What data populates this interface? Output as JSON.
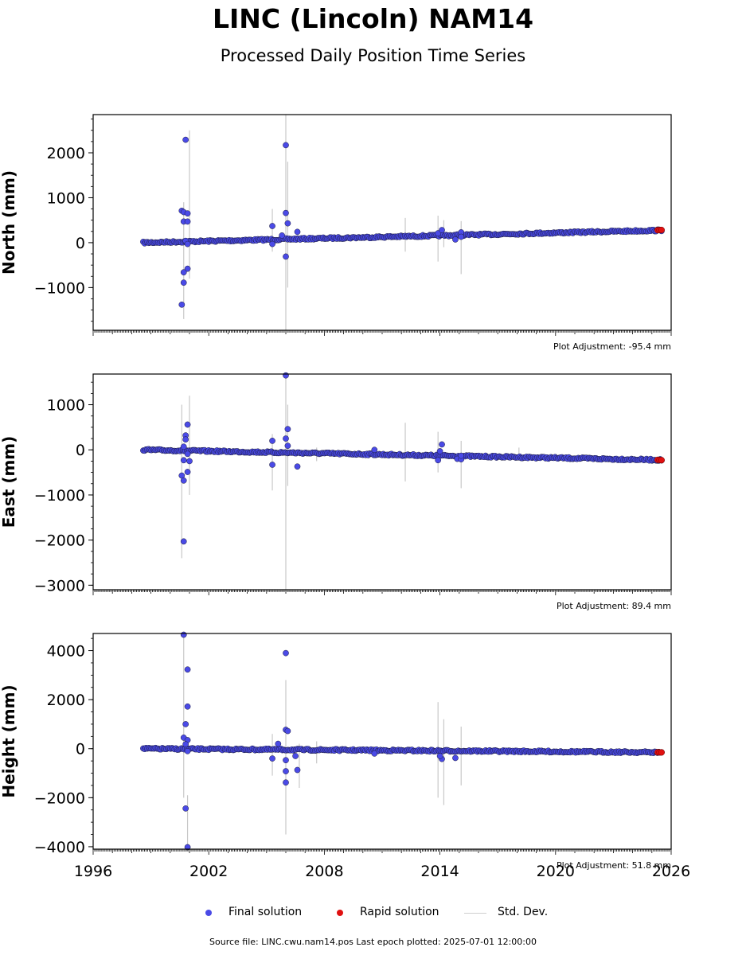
{
  "title": "LINC (Lincoln) NAM14",
  "subtitle": "Processed Daily Position Time Series",
  "legend": {
    "final": "Final solution",
    "rapid": "Rapid solution",
    "std": "Std. Dev."
  },
  "footer": "Source file: LINC.cwu.nam14.pos  Last epoch plotted: 2025-07-01 12:00:00",
  "colors": {
    "final": "#4a4ae6",
    "rapid": "#e01010",
    "std": "#c8c8c8",
    "edge": "#1a1a3a"
  },
  "chart_data": [
    {
      "type": "scatter",
      "ylabel": "North (mm)",
      "xlim": [
        1996,
        2026
      ],
      "ylim": [
        -1950,
        2850
      ],
      "yticks": [
        -1000,
        0,
        1000,
        2000
      ],
      "ytick_labels": [
        "−1000",
        "0",
        "1000",
        "2000"
      ],
      "adjustment": "Plot Adjustment: -95.4 mm",
      "trend": {
        "start": [
          1998.6,
          0
        ],
        "end": [
          2025.5,
          275
        ]
      },
      "rapid": [
        [
          2025.3,
          278
        ],
        [
          2025.4,
          280
        ],
        [
          2025.5,
          282
        ]
      ],
      "outliers": [
        [
          2000.8,
          2290
        ],
        [
          2000.6,
          710
        ],
        [
          2000.7,
          680
        ],
        [
          2000.9,
          650
        ],
        [
          2000.7,
          470
        ],
        [
          2000.9,
          470
        ],
        [
          2000.8,
          40
        ],
        [
          2000.9,
          -30
        ],
        [
          2000.9,
          -580
        ],
        [
          2000.7,
          -660
        ],
        [
          2000.7,
          -890
        ],
        [
          2000.6,
          -1380
        ],
        [
          2005.3,
          370
        ],
        [
          2005.3,
          -30
        ],
        [
          2005.8,
          160
        ],
        [
          2006.0,
          2170
        ],
        [
          2006.0,
          660
        ],
        [
          2006.1,
          430
        ],
        [
          2006.6,
          240
        ],
        [
          2006.0,
          -310
        ],
        [
          2013.9,
          210
        ],
        [
          2014.1,
          280
        ],
        [
          2014.8,
          70
        ],
        [
          2015.1,
          230
        ],
        [
          2015.1,
          130
        ]
      ],
      "stddev": [
        [
          2000.7,
          -1700,
          900
        ],
        [
          2001.0,
          -800,
          2500
        ],
        [
          2006.0,
          -1950,
          2850
        ],
        [
          2006.1,
          -1000,
          1800
        ],
        [
          2005.3,
          -200,
          750
        ],
        [
          2012.2,
          -200,
          550
        ],
        [
          2013.9,
          -420,
          600
        ],
        [
          2015.1,
          -700,
          480
        ],
        [
          2014.2,
          -100,
          500
        ]
      ]
    },
    {
      "type": "scatter",
      "ylabel": "East (mm)",
      "xlim": [
        1996,
        2026
      ],
      "ylim": [
        -3100,
        1680
      ],
      "yticks": [
        -3000,
        -2000,
        -1000,
        0,
        1000
      ],
      "ytick_labels": [
        "−3000",
        "−2000",
        "−1000",
        "0",
        "1000"
      ],
      "adjustment": "Plot Adjustment: 89.4 mm",
      "trend": {
        "start": [
          1998.6,
          0
        ],
        "end": [
          2025.5,
          -225
        ]
      },
      "rapid": [
        [
          2025.3,
          -222
        ],
        [
          2025.4,
          -225
        ],
        [
          2025.5,
          -228
        ]
      ],
      "outliers": [
        [
          2000.9,
          560
        ],
        [
          2000.8,
          320
        ],
        [
          2000.8,
          230
        ],
        [
          2000.7,
          70
        ],
        [
          2000.9,
          -90
        ],
        [
          2000.7,
          -230
        ],
        [
          2001.0,
          -250
        ],
        [
          2000.9,
          -490
        ],
        [
          2000.6,
          -570
        ],
        [
          2000.7,
          -680
        ],
        [
          2000.7,
          -2030
        ],
        [
          2005.3,
          200
        ],
        [
          2005.3,
          -330
        ],
        [
          2006.0,
          1650
        ],
        [
          2006.1,
          460
        ],
        [
          2006.0,
          250
        ],
        [
          2006.1,
          90
        ],
        [
          2006.6,
          -370
        ],
        [
          2010.6,
          0
        ],
        [
          2013.9,
          -230
        ],
        [
          2014.1,
          120
        ],
        [
          2014.0,
          -30
        ],
        [
          2014.9,
          -200
        ],
        [
          2015.1,
          -210
        ],
        [
          2015.1,
          -130
        ]
      ],
      "stddev": [
        [
          2000.6,
          -2400,
          1000
        ],
        [
          2001.0,
          -1000,
          1200
        ],
        [
          2006.0,
          -3100,
          1680
        ],
        [
          2006.1,
          -800,
          1000
        ],
        [
          2005.3,
          -900,
          350
        ],
        [
          2007.6,
          -250,
          50
        ],
        [
          2012.2,
          -700,
          600
        ],
        [
          2013.9,
          -500,
          400
        ],
        [
          2015.1,
          -850,
          200
        ],
        [
          2018.1,
          -200,
          50
        ]
      ]
    },
    {
      "type": "scatter",
      "ylabel": "Height (mm)",
      "xlim": [
        1996,
        2026
      ],
      "ylim": [
        -4100,
        4700
      ],
      "yticks": [
        -4000,
        -2000,
        0,
        2000,
        4000
      ],
      "ytick_labels": [
        "−4000",
        "−2000",
        "0",
        "2000",
        "4000"
      ],
      "adjustment": "Plot Adjustment: 51.8 mm",
      "trend": {
        "start": [
          1998.6,
          0
        ],
        "end": [
          2025.5,
          -150
        ]
      },
      "rapid": [
        [
          2025.3,
          -148
        ],
        [
          2025.4,
          -150
        ],
        [
          2025.5,
          -152
        ]
      ],
      "outliers": [
        [
          2000.7,
          4650
        ],
        [
          2000.9,
          3230
        ],
        [
          2000.9,
          1720
        ],
        [
          2000.8,
          1000
        ],
        [
          2000.7,
          450
        ],
        [
          2000.9,
          350
        ],
        [
          2000.8,
          180
        ],
        [
          2000.9,
          -100
        ],
        [
          2000.8,
          -2440
        ],
        [
          2000.9,
          -4020
        ],
        [
          2005.3,
          -400
        ],
        [
          2005.6,
          200
        ],
        [
          2006.0,
          3900
        ],
        [
          2006.0,
          770
        ],
        [
          2006.1,
          720
        ],
        [
          2006.0,
          -470
        ],
        [
          2006.0,
          -920
        ],
        [
          2006.0,
          -1380
        ],
        [
          2006.6,
          -870
        ],
        [
          2006.5,
          -300
        ],
        [
          2010.6,
          -200
        ],
        [
          2014.1,
          -420
        ],
        [
          2014.0,
          -300
        ],
        [
          2014.8,
          -380
        ]
      ],
      "stddev": [
        [
          2000.7,
          -2000,
          4700
        ],
        [
          2000.9,
          -4100,
          -1900
        ],
        [
          2006.0,
          -3500,
          2800
        ],
        [
          2005.3,
          -1100,
          600
        ],
        [
          2006.7,
          -1600,
          200
        ],
        [
          2013.9,
          -2000,
          1900
        ],
        [
          2014.2,
          -2300,
          1200
        ],
        [
          2015.1,
          -1500,
          900
        ],
        [
          2007.6,
          -600,
          300
        ]
      ]
    }
  ]
}
